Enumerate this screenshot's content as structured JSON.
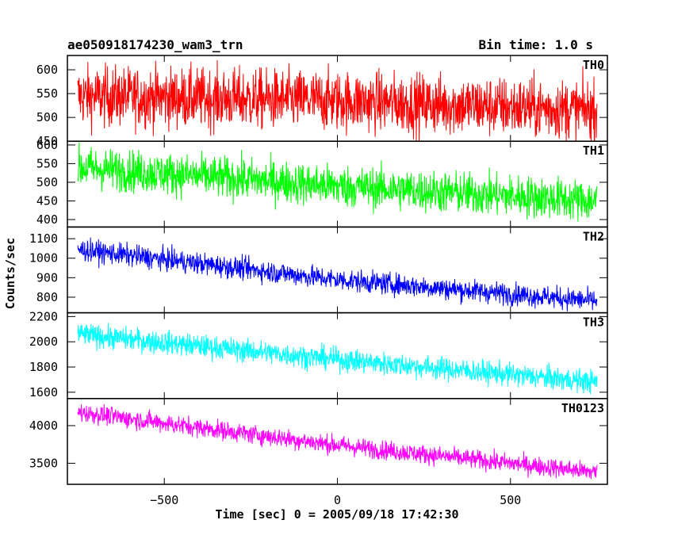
{
  "header": {
    "title": "ae050918174230_wam3_trn",
    "bin_time": "Bin time: 1.0 s"
  },
  "axes": {
    "ylabel": "Counts/sec",
    "xlabel": "Time [sec] 0 = 2005/09/18 17:42:30"
  },
  "chart_data": {
    "type": "line",
    "title": "ae050918174230_wam3_trn",
    "xlabel": "Time [sec] 0 = 2005/09/18 17:42:30",
    "ylabel": "Counts/sec",
    "xlim": [
      -780,
      780
    ],
    "xticks": [
      -500,
      0,
      500
    ],
    "panels": [
      {
        "name": "TH0",
        "color": "#ff0000",
        "ylim": [
          450,
          630
        ],
        "yticks": [
          450,
          500,
          550,
          600
        ],
        "trend": [
          [
            -750,
            545
          ],
          [
            0,
            535
          ],
          [
            750,
            515
          ]
        ],
        "noise_amplitude": 45
      },
      {
        "name": "TH1",
        "color": "#00ff00",
        "ylim": [
          380,
          610
        ],
        "yticks": [
          400,
          450,
          500,
          550,
          600
        ],
        "trend": [
          [
            -750,
            540
          ],
          [
            0,
            490
          ],
          [
            750,
            450
          ]
        ],
        "noise_amplitude": 40
      },
      {
        "name": "TH2",
        "color": "#0000ff",
        "ylim": [
          720,
          1160
        ],
        "yticks": [
          800,
          900,
          1000,
          1100
        ],
        "trend": [
          [
            -750,
            1045
          ],
          [
            0,
            890
          ],
          [
            750,
            780
          ]
        ],
        "noise_amplitude": 40
      },
      {
        "name": "TH3",
        "color": "#00ffff",
        "ylim": [
          1550,
          2230
        ],
        "yticks": [
          1600,
          1800,
          2000,
          2200
        ],
        "trend": [
          [
            -750,
            2060
          ],
          [
            0,
            1860
          ],
          [
            750,
            1680
          ]
        ],
        "noise_amplitude": 65
      },
      {
        "name": "TH0123",
        "color": "#ff00ff",
        "ylim": [
          3220,
          4360
        ],
        "yticks": [
          3500,
          4000
        ],
        "trend": [
          [
            -750,
            4180
          ],
          [
            0,
            3740
          ],
          [
            750,
            3380
          ]
        ],
        "noise_amplitude": 90
      }
    ]
  }
}
